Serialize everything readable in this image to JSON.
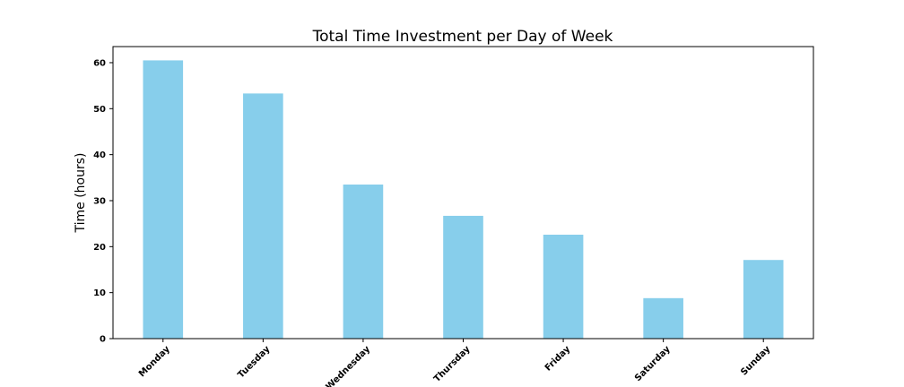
{
  "chart_data": {
    "type": "bar",
    "title": "Total Time Investment per Day of Week",
    "xlabel": "",
    "ylabel": "Time (hours)",
    "categories": [
      "Monday",
      "Tuesday",
      "Wednesday",
      "Thursday",
      "Friday",
      "Saturday",
      "Sunday"
    ],
    "values": [
      60.5,
      53.3,
      33.5,
      26.7,
      22.6,
      8.8,
      17.1
    ],
    "ylim": [
      0,
      63.5
    ],
    "yticks": [
      0,
      10,
      20,
      30,
      40,
      50,
      60
    ],
    "bar_color": "#87CEEB",
    "grid": false,
    "legend": "none"
  }
}
